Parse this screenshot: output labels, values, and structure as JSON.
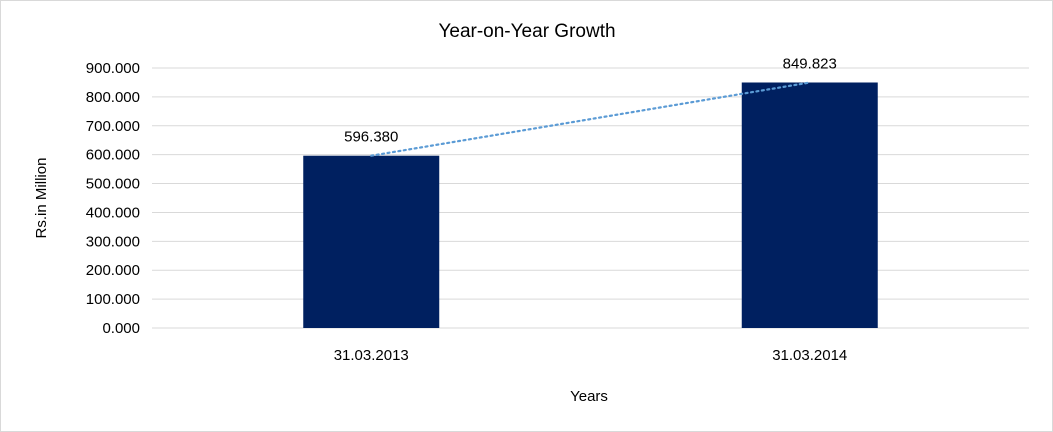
{
  "chart_data": {
    "type": "bar",
    "title": "Year-on-Year Growth",
    "xlabel": "Years",
    "ylabel": "Rs.in Million",
    "categories": [
      "31.03.2013",
      "31.03.2014"
    ],
    "values": [
      596.38,
      849.823
    ],
    "data_labels": [
      "596.380",
      "849.823"
    ],
    "ylim": [
      0,
      900
    ],
    "yticks": [
      "0.000",
      "100.000",
      "200.000",
      "300.000",
      "400.000",
      "500.000",
      "600.000",
      "700.000",
      "800.000",
      "900.000"
    ],
    "grid": true,
    "legend": "none",
    "trendline": {
      "type": "linear",
      "style": "dotted"
    },
    "colors": {
      "bar": "#002060",
      "trendline": "#5b9bd5",
      "grid": "#d9d9d9"
    }
  }
}
